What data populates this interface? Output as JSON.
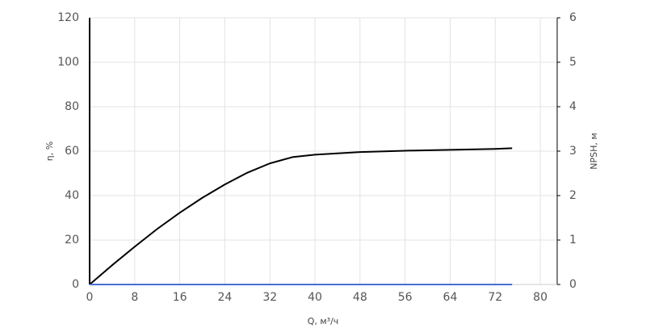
{
  "chart_data": {
    "type": "line",
    "x_label": "Q, м³/ч",
    "y_label": "η, %",
    "y2_label": "NPSH, м",
    "x": [
      0,
      4,
      8,
      12,
      16,
      20,
      24,
      28,
      32,
      36,
      40,
      48,
      56,
      64,
      72,
      75
    ],
    "series": [
      {
        "color": "#000000",
        "values": [
          0,
          8.7,
          17,
          25,
          32.3,
          39,
          45,
          50.3,
          54.5,
          57.3,
          58.4,
          59.6,
          60.2,
          60.6,
          61,
          61.3
        ]
      },
      {
        "color": "#4a6fd0",
        "axis": "y2",
        "values": [
          0,
          0,
          0,
          0,
          0,
          0,
          0,
          0,
          0,
          0,
          0,
          0,
          0,
          0,
          0,
          0
        ]
      }
    ],
    "xlim": [
      0,
      83
    ],
    "xticks": [
      0,
      8,
      16,
      24,
      32,
      40,
      48,
      56,
      64,
      72,
      80
    ],
    "ylim": [
      0,
      120
    ],
    "yticks": [
      0,
      20,
      40,
      60,
      80,
      100,
      120
    ],
    "y2lim": [
      0,
      6
    ],
    "y2ticks": [
      0,
      1,
      2,
      3,
      4,
      5,
      6
    ],
    "grid": true
  }
}
